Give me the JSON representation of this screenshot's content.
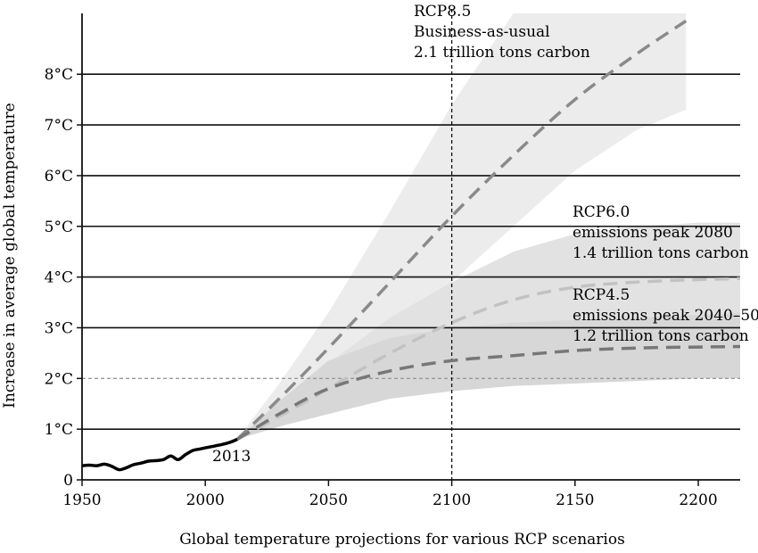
{
  "chart_data": {
    "type": "line",
    "title": "",
    "xlabel": "Global temperature projections for various RCP scenarios",
    "ylabel": "Increase in average global temperature",
    "xlim": [
      1950,
      2217
    ],
    "ylim": [
      0,
      9.2
    ],
    "x_ticks": [
      1950,
      2000,
      2050,
      2100,
      2150,
      2200
    ],
    "x_tick_labels": [
      "1950",
      "2000",
      "2050",
      "2100",
      "2150",
      "2200"
    ],
    "y_ticks": [
      0,
      1,
      2,
      3,
      4,
      5,
      6,
      7,
      8
    ],
    "y_tick_labels": [
      "0",
      "1°C",
      "2°C",
      "3°C",
      "4°C",
      "5°C",
      "6°C",
      "7°C",
      "8°C"
    ],
    "gridlines_y": [
      1,
      3,
      4,
      5,
      6,
      7,
      8
    ],
    "reference_line_y": 2,
    "reference_line_x": 2100,
    "observed": {
      "name": "Observed",
      "label": "2013",
      "x": [
        1950,
        1953,
        1956,
        1959,
        1962,
        1965,
        1968,
        1971,
        1974,
        1977,
        1980,
        1983,
        1986,
        1989,
        1992,
        1995,
        1998,
        2001,
        2004,
        2007,
        2010,
        2013
      ],
      "y": [
        0.28,
        0.29,
        0.28,
        0.31,
        0.27,
        0.2,
        0.24,
        0.3,
        0.33,
        0.37,
        0.38,
        0.4,
        0.47,
        0.4,
        0.5,
        0.58,
        0.61,
        0.64,
        0.67,
        0.7,
        0.74,
        0.8
      ]
    },
    "series": [
      {
        "name": "RCP8.5",
        "labels": [
          "RCP8.5",
          "Business-as-usual",
          "2.1 trillion tons carbon"
        ],
        "color": "#8a8a8a",
        "band_color": "#ececec",
        "x": [
          2013,
          2030,
          2050,
          2075,
          2100,
          2125,
          2150,
          2175,
          2195
        ],
        "y": [
          0.8,
          1.6,
          2.6,
          3.9,
          5.2,
          6.4,
          7.5,
          8.4,
          9.05
        ],
        "lower": [
          0.8,
          1.3,
          2.0,
          2.9,
          3.9,
          5.0,
          6.1,
          6.9,
          7.3
        ],
        "upper": [
          0.8,
          1.9,
          3.3,
          5.3,
          7.4,
          9.2,
          9.2,
          9.2,
          9.2
        ]
      },
      {
        "name": "RCP6.0",
        "labels": [
          "RCP6.0",
          "emissions peak 2080",
          "1.4 trillion tons carbon"
        ],
        "color": "#c2c2c2",
        "band_color": "#e2e2e2",
        "x": [
          2013,
          2030,
          2050,
          2075,
          2100,
          2125,
          2150,
          2175,
          2200,
          2217
        ],
        "y": [
          0.8,
          1.25,
          1.8,
          2.5,
          3.1,
          3.55,
          3.8,
          3.9,
          3.95,
          3.97
        ],
        "lower": [
          0.8,
          1.05,
          1.35,
          1.8,
          2.25,
          2.55,
          2.7,
          2.75,
          2.78,
          2.8
        ],
        "upper": [
          0.8,
          1.5,
          2.3,
          3.2,
          3.9,
          4.5,
          4.85,
          5.0,
          5.07,
          5.07
        ]
      },
      {
        "name": "RCP4.5",
        "labels": [
          "RCP4.5",
          "emissions peak 2040–50",
          "1.2 trillion tons carbon"
        ],
        "color": "#777777",
        "band_color": "#d7d7d7",
        "x": [
          2013,
          2030,
          2050,
          2075,
          2100,
          2125,
          2150,
          2175,
          2200,
          2217
        ],
        "y": [
          0.8,
          1.3,
          1.8,
          2.15,
          2.35,
          2.45,
          2.55,
          2.6,
          2.62,
          2.63
        ],
        "lower": [
          0.8,
          1.05,
          1.3,
          1.6,
          1.75,
          1.85,
          1.9,
          1.95,
          2.0,
          2.0
        ],
        "upper": [
          0.8,
          1.55,
          2.35,
          2.8,
          3.0,
          3.1,
          3.15,
          3.2,
          3.25,
          3.3
        ]
      }
    ]
  }
}
